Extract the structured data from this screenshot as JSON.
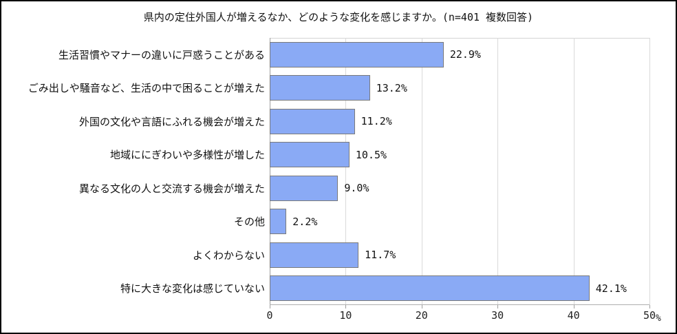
{
  "chart_data": {
    "type": "bar",
    "orientation": "horizontal",
    "title": "県内の定住外国人が増えるなか、どのような変化を感じますか。(n=401 複数回答)",
    "categories": [
      "生活習慣やマナーの違いに戸惑うことがある",
      "ごみ出しや騒音など、生活の中で困ることが増えた",
      "外国の文化や言語にふれる機会が増えた",
      "地域ににぎわいや多様性が増した",
      "異なる文化の人と交流する機会が増えた",
      "その他",
      "よくわからない",
      "特に大きな変化は感じていない"
    ],
    "values": [
      22.9,
      13.2,
      11.2,
      10.5,
      9.0,
      2.2,
      11.7,
      42.1
    ],
    "value_labels": [
      "22.9%",
      "13.2%",
      "11.2%",
      "10.5%",
      "9.0%",
      "2.2%",
      "11.7%",
      "42.1%"
    ],
    "xlim": [
      0,
      50
    ],
    "x_ticks": [
      "0",
      "10",
      "20",
      "30",
      "40",
      "50"
    ],
    "x_unit": "%",
    "grid": true,
    "legend": "none",
    "bar_color": "#8aaaf5",
    "bar_border_color": "#7a7a7a",
    "gridline_color": "#d9d9d9",
    "frame_border_color": "#000000"
  }
}
